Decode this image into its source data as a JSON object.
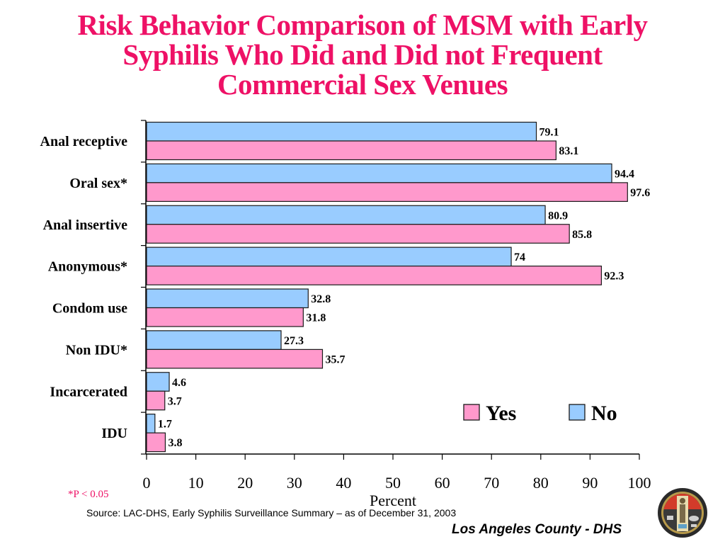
{
  "title_lines": [
    "Risk Behavior Comparison of MSM with Early",
    "Syphilis Who Did and Did not Frequent",
    "Commercial Sex Venues"
  ],
  "footnote": "*P < 0.05",
  "source": "Source: LAC-DHS, Early Syphilis Surveillance Summary – as of December 31, 2003",
  "agency": "Los Angeles County - DHS",
  "logo": {
    "name": "los-angeles-county-seal"
  },
  "colors": {
    "title": "#ee1166",
    "yes": "#ff99cc",
    "no": "#99ccff",
    "bar_stroke": "#1a1a1a"
  },
  "chart_data": {
    "type": "bar",
    "orientation": "horizontal",
    "title": "Risk Behavior Comparison of MSM with Early Syphilis Who Did and Did not Frequent Commercial Sex Venues",
    "categories": [
      "Anal receptive",
      "Oral sex*",
      "Anal insertive",
      "Anonymous*",
      "Condom use",
      "Non IDU*",
      "Incarcerated",
      "IDU"
    ],
    "series": [
      {
        "name": "No",
        "color": "#99ccff",
        "values": [
          79.1,
          94.4,
          80.9,
          74,
          32.8,
          27.3,
          4.6,
          1.7
        ],
        "labels": [
          "79.1",
          "94.4",
          "80.9",
          "74",
          "32.8",
          "27.3",
          "4.6",
          "1.7"
        ]
      },
      {
        "name": "Yes",
        "color": "#ff99cc",
        "values": [
          83.1,
          97.6,
          85.8,
          92.3,
          31.8,
          35.7,
          3.7,
          3.8
        ],
        "labels": [
          "83.1",
          "97.6",
          "85.8",
          "92.3",
          "31.8",
          "35.7",
          "3.7",
          "3.8"
        ]
      }
    ],
    "xlabel": "Percent",
    "ylabel": "",
    "xlim": [
      0,
      100
    ],
    "xticks": [
      "0",
      "10",
      "20",
      "30",
      "40",
      "50",
      "60",
      "70",
      "80",
      "90",
      "100"
    ],
    "grid": false,
    "legend": {
      "placement": "lower-right",
      "entries": [
        "Yes",
        "No"
      ]
    }
  }
}
